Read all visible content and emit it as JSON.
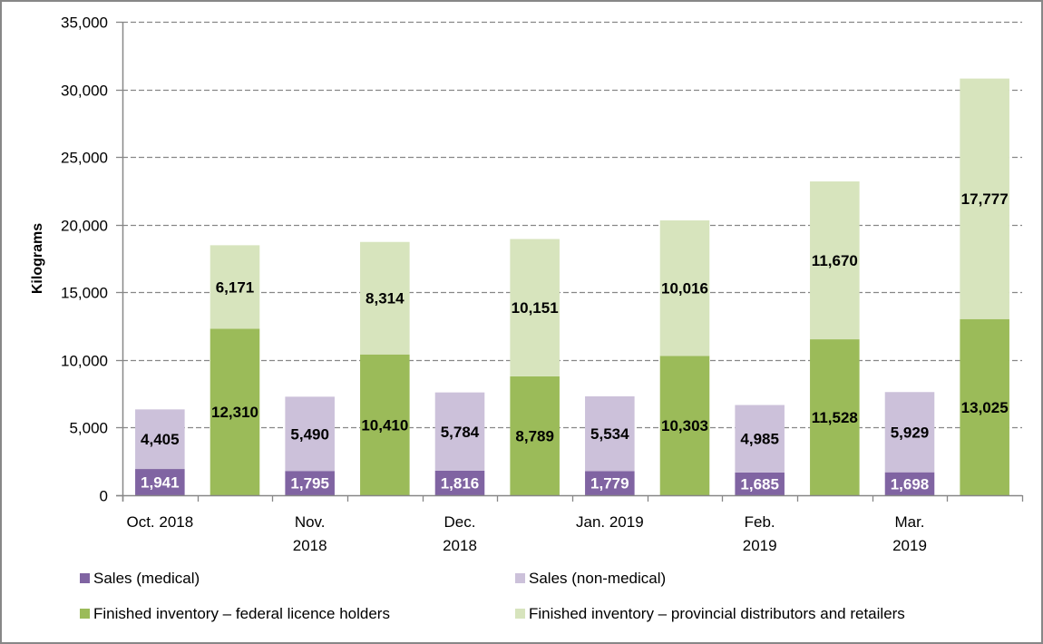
{
  "chart_data": {
    "type": "bar",
    "stacked": true,
    "title": "",
    "xlabel": "",
    "ylabel": "Kilograms",
    "ylim": [
      0,
      35000
    ],
    "yticks": [
      0,
      5000,
      10000,
      15000,
      20000,
      25000,
      30000,
      35000
    ],
    "ytick_labels": [
      "0",
      "5,000",
      "10,000",
      "15,000",
      "20,000",
      "25,000",
      "30,000",
      "35,000"
    ],
    "grid": "horizontal-dashed",
    "legend_position": "bottom",
    "categories": [
      {
        "label_lines": [
          "Oct. 2018"
        ]
      },
      {
        "label_lines": [
          "Nov.",
          "2018"
        ]
      },
      {
        "label_lines": [
          "Dec.",
          "2018"
        ]
      },
      {
        "label_lines": [
          "Jan. 2019"
        ]
      },
      {
        "label_lines": [
          "Feb.",
          "2019"
        ]
      },
      {
        "label_lines": [
          "Mar.",
          "2019"
        ]
      }
    ],
    "stacks": [
      {
        "id": "sales",
        "series": [
          {
            "name": "Sales (medical)",
            "color": "#8064a2",
            "label_color": "#ffffff",
            "values": [
              1941,
              1795,
              1816,
              1779,
              1685,
              1698
            ],
            "labels": [
              "1,941",
              "1,795",
              "1,816",
              "1,779",
              "1,685",
              "1,698"
            ]
          },
          {
            "name": "Sales (non-medical)",
            "color": "#ccc1da",
            "label_color": "#000000",
            "values": [
              4405,
              5490,
              5784,
              5534,
              4985,
              5929
            ],
            "labels": [
              "4,405",
              "5,490",
              "5,784",
              "5,534",
              "4,985",
              "5,929"
            ]
          }
        ]
      },
      {
        "id": "inventory",
        "series": [
          {
            "name": "Finished inventory – federal licence holders",
            "color": "#9bbb59",
            "label_color": "#000000",
            "values": [
              12310,
              10410,
              8789,
              10303,
              11528,
              13025
            ],
            "labels": [
              "12,310",
              "10,410",
              "8,789",
              "10,303",
              "11,528",
              "13,025"
            ]
          },
          {
            "name": "Finished inventory – provincial distributors and retailers",
            "color": "#d7e4bd",
            "label_color": "#000000",
            "values": [
              6171,
              8314,
              10151,
              10016,
              11670,
              17777
            ],
            "labels": [
              "6,171",
              "8,314",
              "10,151",
              "10,016",
              "11,670",
              "17,777"
            ]
          }
        ]
      }
    ],
    "legend": [
      {
        "name": "Sales (medical)",
        "color": "#8064a2"
      },
      {
        "name": "Sales (non-medical)",
        "color": "#ccc1da"
      },
      {
        "name": "Finished inventory – federal licence holders",
        "color": "#9bbb59"
      },
      {
        "name": "Finished inventory – provincial distributors and retailers",
        "color": "#d7e4bd"
      }
    ],
    "colors": {
      "axis": "#878787",
      "grid": "#878787"
    }
  }
}
